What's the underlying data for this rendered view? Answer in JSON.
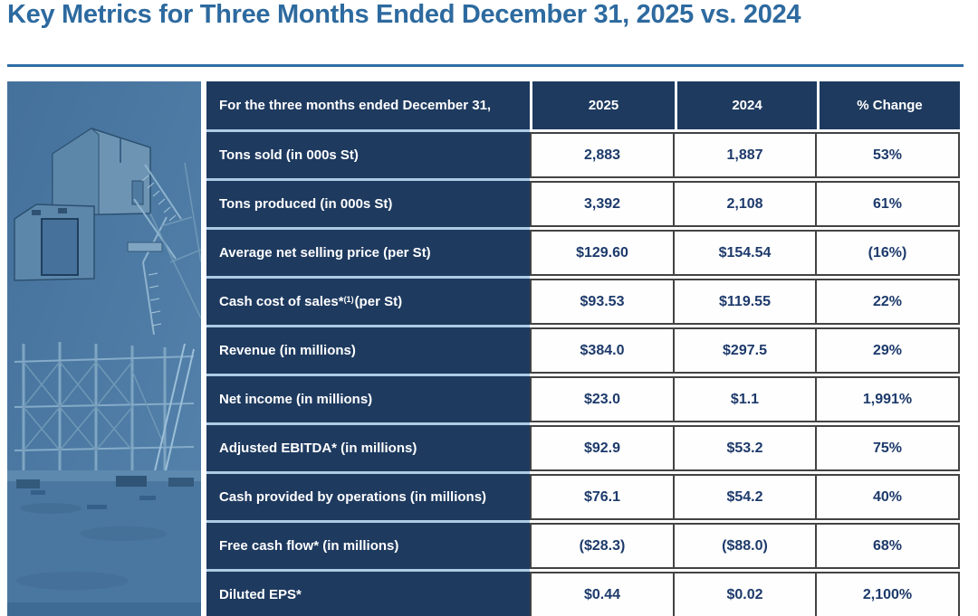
{
  "page": {
    "title": "Key Metrics for Three Months Ended December 31, 2025 vs. 2024"
  },
  "colors": {
    "title_color": "#2d6a9f",
    "rule_color": "#2e6da4",
    "header_bg": "#1e3a5f",
    "value_text": "#1d3a6b",
    "row_separator": "#aecbe5",
    "cell_border": "#434343"
  },
  "image": {
    "description": "mine headframe and steel lattice structure, blue duotone"
  },
  "table": {
    "header": [
      "For the three months ended December 31,",
      "2025",
      "2024",
      "% Change"
    ],
    "rows": [
      {
        "label": "Tons sold (in 000s St)",
        "v2025": "2,883",
        "v2024": "1,887",
        "change": "53%"
      },
      {
        "label": "Tons produced  (in 000s St)",
        "v2025": "3,392",
        "v2024": "2,108",
        "change": "61%"
      },
      {
        "label": "Average net selling price (per St)",
        "v2025": "$129.60",
        "v2024": "$154.54",
        "change": "(16%)"
      },
      {
        "label": "Cash cost of sales*",
        "label_sup": "(1)",
        "label_suffix": " (per St)",
        "v2025": "$93.53",
        "v2024": "$119.55",
        "change": "22%"
      },
      {
        "label": "Revenue (in millions)",
        "v2025": "$384.0",
        "v2024": "$297.5",
        "change": "29%"
      },
      {
        "label": "Net income (in millions)",
        "v2025": "$23.0",
        "v2024": "$1.1",
        "change": "1,991%"
      },
      {
        "label": "Adjusted EBITDA* (in millions)",
        "v2025": "$92.9",
        "v2024": "$53.2",
        "change": "75%"
      },
      {
        "label": "Cash provided by operations (in millions)",
        "v2025": "$76.1",
        "v2024": "$54.2",
        "change": "40%"
      },
      {
        "label": "Free cash flow* (in millions)",
        "v2025": "($28.3)",
        "v2024": "($88.0)",
        "change": "68%"
      },
      {
        "label": "Diluted EPS*",
        "v2025": "$0.44",
        "v2024": "$0.02",
        "change": "2,100%"
      }
    ]
  }
}
